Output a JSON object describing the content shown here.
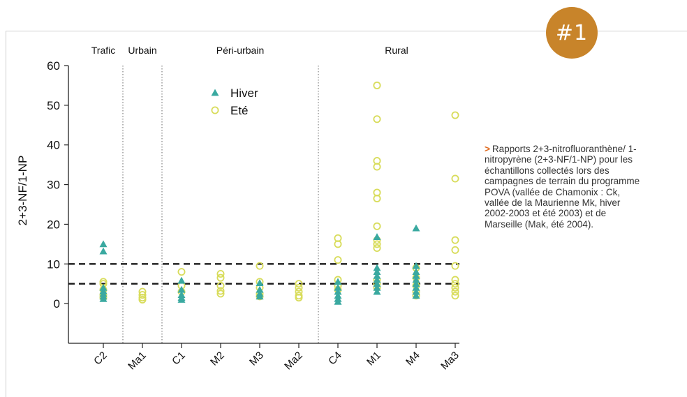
{
  "badge": {
    "label": "#1"
  },
  "caption": {
    "marker": ">",
    "text": "Rapports 2+3-nitrofluoranthène/ 1-nitropyrène (2+3-NF/1-NP) pour les échantillons collectés lors des campagnes de terrain du programme POVA (vallée de Chamonix : Ck, vallée de la Maurienne Mk, hiver 2002-2003 et été 2003) et de Marseille (Mak, été 2004)."
  },
  "colors": {
    "hiver": "#3aa9a0",
    "ete": "#d8dc5a",
    "badge": "#c8842a",
    "caption_marker": "#e06a1f"
  },
  "chart_data": {
    "type": "scatter",
    "categories": [
      "C2",
      "Ma1",
      "C1",
      "M2",
      "M3",
      "Ma2",
      "C4",
      "M1",
      "M4",
      "Ma3"
    ],
    "groups": [
      {
        "label": "Trafic",
        "from": 0,
        "to": 0
      },
      {
        "label": "Urbain",
        "from": 1,
        "to": 1
      },
      {
        "label": "Péri-urbain",
        "from": 2,
        "to": 5
      },
      {
        "label": "Rural",
        "from": 6,
        "to": 9
      }
    ],
    "group_dividers_after": [
      0,
      1,
      5
    ],
    "ylabel": "2+3-NF/1-NP",
    "xlabel": "",
    "ylim": [
      -10,
      60
    ],
    "yticks": [
      0,
      10,
      20,
      30,
      40,
      50,
      60
    ],
    "reference_lines": [
      10,
      5
    ],
    "legend": {
      "placement": "top-center",
      "entries": [
        "Hiver",
        "Eté"
      ]
    },
    "grid": false,
    "series": [
      {
        "name": "Hiver",
        "marker": "triangle",
        "points": [
          [
            0,
            15
          ],
          [
            0,
            13.2
          ],
          [
            0,
            4
          ],
          [
            0,
            3.2
          ],
          [
            0,
            2.5
          ],
          [
            0,
            1.8
          ],
          [
            0,
            1.2
          ],
          [
            2,
            5.8
          ],
          [
            2,
            3.5
          ],
          [
            2,
            2.2
          ],
          [
            2,
            1.5
          ],
          [
            2,
            1
          ],
          [
            4,
            5.2
          ],
          [
            4,
            3.5
          ],
          [
            4,
            2.5
          ],
          [
            4,
            1.8
          ],
          [
            6,
            5.5
          ],
          [
            6,
            4
          ],
          [
            6,
            3
          ],
          [
            6,
            2
          ],
          [
            6,
            1.2
          ],
          [
            6,
            0.5
          ],
          [
            7,
            16.8
          ],
          [
            7,
            9
          ],
          [
            7,
            8
          ],
          [
            7,
            7
          ],
          [
            7,
            6
          ],
          [
            7,
            5
          ],
          [
            7,
            4
          ],
          [
            7,
            3
          ],
          [
            8,
            19
          ],
          [
            8,
            9.5
          ],
          [
            8,
            8
          ],
          [
            8,
            7
          ],
          [
            8,
            6
          ],
          [
            8,
            5
          ],
          [
            8,
            4
          ],
          [
            8,
            3
          ],
          [
            8,
            2
          ]
        ]
      },
      {
        "name": "Eté",
        "marker": "circle",
        "points": [
          [
            0,
            5.5
          ],
          [
            0,
            5
          ],
          [
            0,
            3.5
          ],
          [
            0,
            2.2
          ],
          [
            0,
            1.5
          ],
          [
            1,
            3
          ],
          [
            1,
            2.2
          ],
          [
            1,
            1.5
          ],
          [
            1,
            1
          ],
          [
            2,
            8
          ],
          [
            2,
            4.5
          ],
          [
            2,
            3
          ],
          [
            3,
            7.5
          ],
          [
            3,
            6.5
          ],
          [
            3,
            4.5
          ],
          [
            3,
            3.2
          ],
          [
            3,
            2.5
          ],
          [
            4,
            9.5
          ],
          [
            4,
            5.5
          ],
          [
            4,
            4
          ],
          [
            4,
            2.5
          ],
          [
            4,
            1.8
          ],
          [
            5,
            5
          ],
          [
            5,
            4
          ],
          [
            5,
            3
          ],
          [
            5,
            2
          ],
          [
            5,
            1.5
          ],
          [
            6,
            16.5
          ],
          [
            6,
            15
          ],
          [
            6,
            11
          ],
          [
            6,
            6
          ],
          [
            6,
            4.5
          ],
          [
            6,
            3.5
          ],
          [
            7,
            55
          ],
          [
            7,
            46.5
          ],
          [
            7,
            36
          ],
          [
            7,
            34.5
          ],
          [
            7,
            28
          ],
          [
            7,
            26.5
          ],
          [
            7,
            19.5
          ],
          [
            7,
            16
          ],
          [
            7,
            15
          ],
          [
            7,
            14
          ],
          [
            7,
            6
          ],
          [
            7,
            5
          ],
          [
            7,
            4
          ],
          [
            8,
            9
          ],
          [
            8,
            6.5
          ],
          [
            8,
            4.5
          ],
          [
            8,
            3
          ],
          [
            8,
            2
          ],
          [
            9,
            47.5
          ],
          [
            9,
            31.5
          ],
          [
            9,
            16
          ],
          [
            9,
            13.5
          ],
          [
            9,
            9.5
          ],
          [
            9,
            6
          ],
          [
            9,
            5
          ],
          [
            9,
            4
          ],
          [
            9,
            3
          ],
          [
            9,
            2
          ]
        ]
      }
    ]
  }
}
